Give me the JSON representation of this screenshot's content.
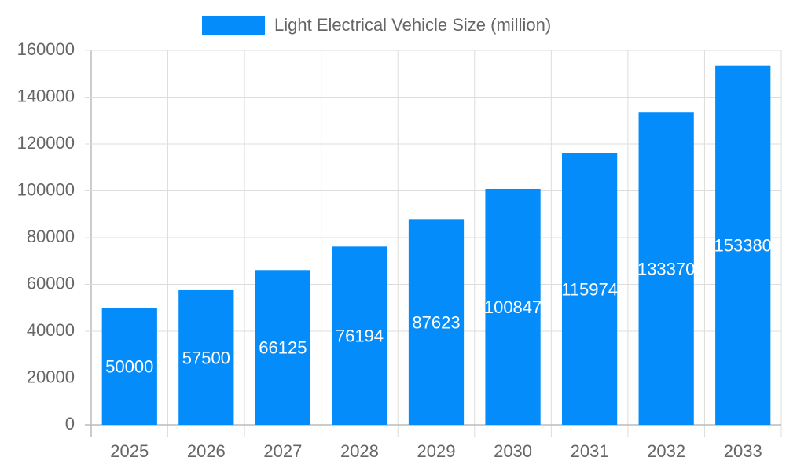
{
  "chart_data": {
    "type": "bar",
    "legend": "Light Electrical Vehicle Size (million)",
    "categories": [
      "2025",
      "2026",
      "2027",
      "2028",
      "2029",
      "2030",
      "2031",
      "2032",
      "2033"
    ],
    "values": [
      50000,
      57500,
      66125,
      76194,
      87623,
      100847,
      115974,
      133370,
      153380
    ],
    "color": "#038cfa",
    "ylim": [
      0,
      160000
    ],
    "yticks": [
      0,
      20000,
      40000,
      60000,
      80000,
      100000,
      120000,
      140000,
      160000
    ],
    "grid": true
  }
}
